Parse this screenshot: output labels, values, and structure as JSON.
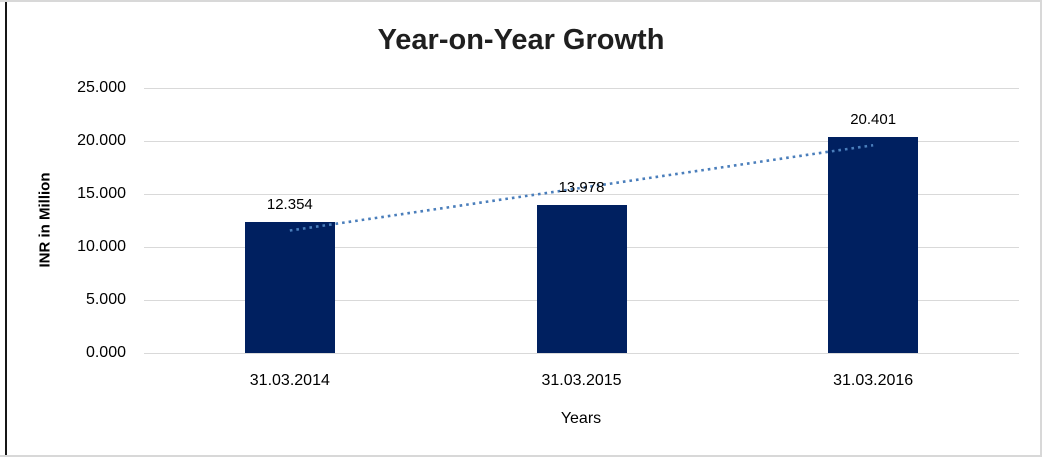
{
  "chart_data": {
    "type": "bar",
    "title": "Year-on-Year Growth",
    "xlabel": "Years",
    "ylabel": "INR in Million",
    "categories": [
      "31.03.2014",
      "31.03.2015",
      "31.03.2016"
    ],
    "values": [
      12.354,
      13.978,
      20.401
    ],
    "value_labels": [
      "12.354",
      "13.978",
      "20.401"
    ],
    "ylim": [
      0,
      25
    ],
    "yticks": [
      0,
      5,
      10,
      15,
      20,
      25
    ],
    "ytick_labels": [
      "0.000",
      "5.000",
      "10.000",
      "15.000",
      "20.000",
      "25.000"
    ],
    "grid": true,
    "legend": "none",
    "bar_color": "#002060",
    "gridline_color": "#d9d9d9",
    "trendline": {
      "type": "linear",
      "style": "dotted",
      "color": "#4a7ebb"
    }
  }
}
